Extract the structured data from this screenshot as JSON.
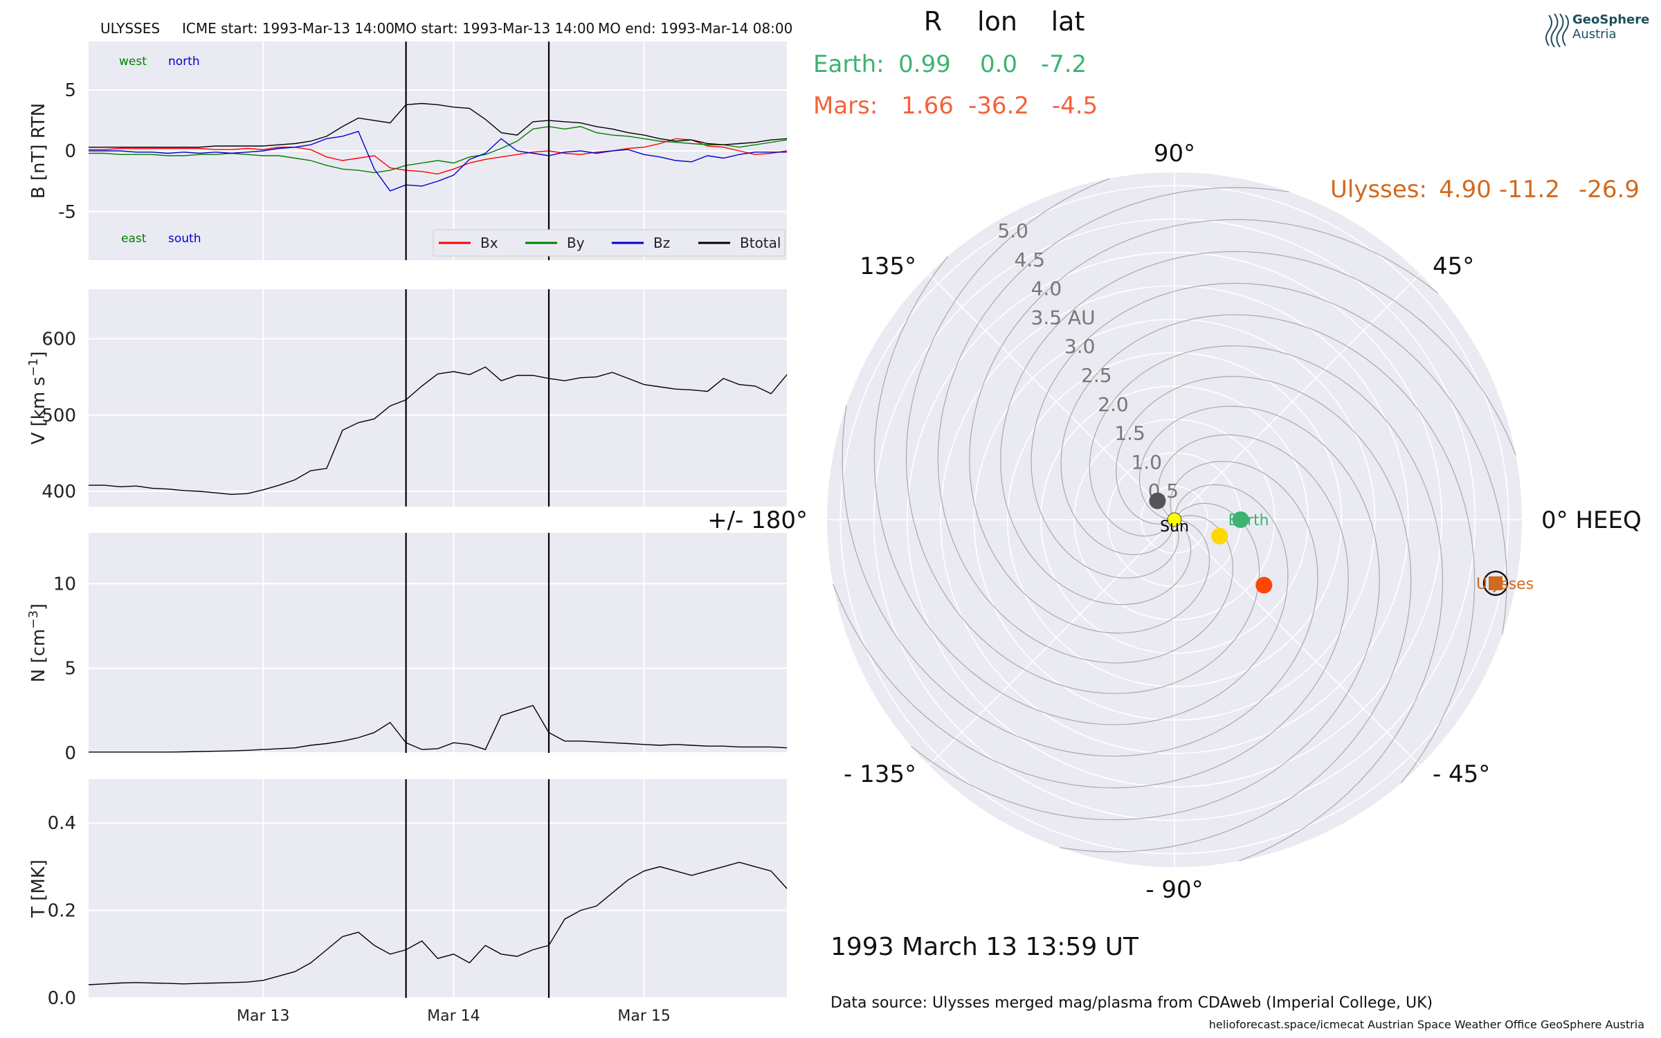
{
  "header": {
    "mission": "ULYSSES",
    "icme_start": "ICME start: 1993-Mar-13 14:00",
    "mo_start": "MO start: 1993-Mar-13 14:00",
    "mo_end": "MO end: 1993-Mar-14 08:00"
  },
  "logo": {
    "line1": "GeoSphere",
    "line2": "Austria"
  },
  "positions": {
    "headers": [
      "R",
      "lon",
      "lat"
    ],
    "bodies": [
      {
        "name": "Earth:",
        "R": "0.99",
        "lon": "0.0",
        "lat": "-7.2",
        "color": "#3cb371"
      },
      {
        "name": "Mars:",
        "R": "1.66",
        "lon": "-36.2",
        "lat": "-4.5",
        "color": "#f4623a"
      }
    ],
    "ulysses": {
      "name": "Ulysses:",
      "R": "4.90",
      "lon": "-11.2",
      "lat": "-26.9",
      "color": "#d2691e"
    }
  },
  "timestamp": "1993 March 13  13:59 UT",
  "data_source": "Data source: Ulysses merged mag/plasma from CDAweb (Imperial College, UK)",
  "credits": "helioforecast.space/icmecat   Austrian Space Weather Office   GeoSphere Austria",
  "chart_data": [
    {
      "type": "line",
      "panel": "B",
      "ylabel": "B [nT] RTN",
      "ylim": [
        -9,
        9
      ],
      "yticks": [
        -5,
        0,
        5
      ],
      "grid": true,
      "direction_labels": {
        "top": [
          "west",
          "north"
        ],
        "bottom": [
          "east",
          "south"
        ]
      },
      "legend_position": "lower-right",
      "x": [
        0,
        2,
        4,
        6,
        8,
        10,
        12,
        14,
        16,
        18,
        20,
        22,
        24,
        26,
        28,
        30,
        32,
        34,
        36,
        38,
        40,
        42,
        44,
        46,
        48,
        50,
        52,
        54,
        56,
        58,
        60,
        62,
        64,
        66,
        68,
        70,
        72,
        74,
        76,
        78,
        80,
        82,
        84,
        86,
        88
      ],
      "series": [
        {
          "name": "Bx",
          "color": "#ff0000",
          "values": [
            0.1,
            0.1,
            0.2,
            0.2,
            0.2,
            0.2,
            0.2,
            0.2,
            0.1,
            0.1,
            0.2,
            0.1,
            0.3,
            0.3,
            0.1,
            -0.5,
            -0.8,
            -0.6,
            -0.4,
            -1.4,
            -1.6,
            -1.7,
            -1.9,
            -1.5,
            -1.0,
            -0.7,
            -0.5,
            -0.3,
            -0.1,
            0.0,
            -0.2,
            -0.3,
            -0.1,
            0.0,
            0.2,
            0.3,
            0.6,
            1.0,
            0.9,
            0.4,
            0.3,
            0.0,
            -0.3,
            -0.2,
            0.0
          ]
        },
        {
          "name": "By",
          "color": "#008000",
          "values": [
            -0.2,
            -0.2,
            -0.3,
            -0.3,
            -0.3,
            -0.4,
            -0.4,
            -0.3,
            -0.3,
            -0.2,
            -0.3,
            -0.4,
            -0.4,
            -0.6,
            -0.8,
            -1.2,
            -1.5,
            -1.6,
            -1.8,
            -1.6,
            -1.2,
            -1.0,
            -0.8,
            -1.0,
            -0.5,
            -0.3,
            0.2,
            0.8,
            1.8,
            2.0,
            1.8,
            2.0,
            1.5,
            1.3,
            1.2,
            1.0,
            0.8,
            0.7,
            0.6,
            0.5,
            0.5,
            0.3,
            0.5,
            0.7,
            0.9
          ]
        },
        {
          "name": "Bz",
          "color": "#0000cd",
          "values": [
            0.0,
            0.0,
            0.0,
            -0.1,
            -0.1,
            -0.2,
            -0.1,
            -0.2,
            -0.1,
            -0.2,
            -0.1,
            0.0,
            0.2,
            0.3,
            0.5,
            1.0,
            1.2,
            1.6,
            -1.5,
            -3.3,
            -2.8,
            -2.9,
            -2.5,
            -2.0,
            -0.7,
            -0.2,
            1.0,
            0.0,
            -0.2,
            -0.4,
            -0.1,
            0.0,
            -0.2,
            0.0,
            0.1,
            -0.3,
            -0.5,
            -0.8,
            -0.9,
            -0.4,
            -0.6,
            -0.3,
            -0.1,
            -0.1,
            -0.1
          ]
        },
        {
          "name": "Btotal",
          "color": "#000000",
          "values": [
            0.3,
            0.3,
            0.3,
            0.3,
            0.3,
            0.3,
            0.3,
            0.3,
            0.4,
            0.4,
            0.4,
            0.4,
            0.5,
            0.6,
            0.8,
            1.2,
            2.0,
            2.7,
            2.5,
            2.3,
            3.8,
            3.9,
            3.8,
            3.6,
            3.5,
            2.6,
            1.5,
            1.3,
            2.4,
            2.5,
            2.4,
            2.3,
            2.0,
            1.8,
            1.5,
            1.3,
            1.0,
            0.8,
            0.9,
            0.6,
            0.5,
            0.6,
            0.7,
            0.9,
            1.0
          ]
        }
      ]
    },
    {
      "type": "line",
      "panel": "V",
      "ylabel": "V [km s",
      "ylabel_exp": "−1",
      "ylabel_end": "]",
      "ylim": [
        380,
        665
      ],
      "yticks": [
        400,
        500,
        600
      ],
      "grid": true,
      "x": [
        0,
        2,
        4,
        6,
        8,
        10,
        12,
        14,
        16,
        18,
        20,
        22,
        24,
        26,
        28,
        30,
        32,
        34,
        36,
        38,
        40,
        42,
        44,
        46,
        48,
        50,
        52,
        54,
        56,
        58,
        60,
        62,
        64,
        66,
        68,
        70,
        72,
        74,
        76,
        78,
        80,
        82,
        84,
        86,
        88
      ],
      "series": [
        {
          "name": "V",
          "color": "#000000",
          "values": [
            408,
            408,
            406,
            407,
            404,
            403,
            401,
            400,
            398,
            396,
            397,
            402,
            408,
            415,
            427,
            430,
            480,
            490,
            495,
            512,
            520,
            538,
            554,
            557,
            553,
            563,
            545,
            552,
            552,
            548,
            545,
            549,
            550,
            556,
            548,
            540,
            537,
            534,
            533,
            531,
            548,
            540,
            538,
            528,
            553
          ]
        }
      ]
    },
    {
      "type": "line",
      "panel": "N",
      "ylabel": "N [cm",
      "ylabel_exp": "−3",
      "ylabel_end": "]",
      "ylim": [
        0,
        13
      ],
      "yticks": [
        0,
        5,
        10
      ],
      "grid": true,
      "x": [
        0,
        2,
        4,
        6,
        8,
        10,
        12,
        14,
        16,
        18,
        20,
        22,
        24,
        26,
        28,
        30,
        32,
        34,
        36,
        38,
        40,
        42,
        44,
        46,
        48,
        50,
        52,
        54,
        56,
        58,
        60,
        62,
        64,
        66,
        68,
        70,
        72,
        74,
        76,
        78,
        80,
        82,
        84,
        86,
        88
      ],
      "series": [
        {
          "name": "N",
          "color": "#000000",
          "values": [
            0.05,
            0.05,
            0.05,
            0.05,
            0.05,
            0.05,
            0.06,
            0.08,
            0.1,
            0.12,
            0.15,
            0.2,
            0.25,
            0.3,
            0.45,
            0.55,
            0.7,
            0.9,
            1.2,
            1.8,
            0.6,
            0.2,
            0.25,
            0.6,
            0.5,
            0.2,
            2.2,
            2.5,
            2.8,
            1.2,
            0.7,
            0.7,
            0.65,
            0.6,
            0.55,
            0.5,
            0.45,
            0.5,
            0.45,
            0.4,
            0.4,
            0.35,
            0.35,
            0.35,
            0.3
          ]
        }
      ]
    },
    {
      "type": "line",
      "panel": "T",
      "ylabel": "T [MK]",
      "ylim": [
        0,
        0.5
      ],
      "yticks": [
        0.0,
        0.2,
        0.4
      ],
      "grid": true,
      "xtick_labels": [
        {
          "label": "Mar 13",
          "x": 22
        },
        {
          "label": "Mar 14",
          "x": 46
        },
        {
          "label": "Mar 15",
          "x": 70
        }
      ],
      "x": [
        0,
        2,
        4,
        6,
        8,
        10,
        12,
        14,
        16,
        18,
        20,
        22,
        24,
        26,
        28,
        30,
        32,
        34,
        36,
        38,
        40,
        42,
        44,
        46,
        48,
        50,
        52,
        54,
        56,
        58,
        60,
        62,
        64,
        66,
        68,
        70,
        72,
        74,
        76,
        78,
        80,
        82,
        84,
        86,
        88
      ],
      "series": [
        {
          "name": "T",
          "color": "#000000",
          "values": [
            0.03,
            0.032,
            0.034,
            0.035,
            0.034,
            0.033,
            0.032,
            0.033,
            0.034,
            0.035,
            0.036,
            0.04,
            0.05,
            0.06,
            0.08,
            0.11,
            0.14,
            0.15,
            0.12,
            0.1,
            0.11,
            0.13,
            0.09,
            0.1,
            0.08,
            0.12,
            0.1,
            0.095,
            0.11,
            0.12,
            0.18,
            0.2,
            0.21,
            0.24,
            0.27,
            0.29,
            0.3,
            0.29,
            0.28,
            0.29,
            0.3,
            0.31,
            0.3,
            0.29,
            0.25
          ]
        }
      ]
    },
    {
      "type": "scatter",
      "panel": "polar",
      "projection": "polar",
      "radial_unit": "AU",
      "radial_tick_labels": [
        "0.5",
        "1.0",
        "1.5",
        "2.0",
        "2.5",
        "3.0",
        "3.5 AU",
        "4.0",
        "4.5",
        "5.0"
      ],
      "angle_labels": [
        "0° HEEQ",
        "45°",
        "90°",
        "135°",
        "+/- 180°",
        "- 135°",
        "- 90°",
        "- 45°"
      ],
      "rlim": [
        0,
        5.2
      ],
      "grid": true,
      "points": [
        {
          "name": "Sun",
          "r": 0.0,
          "lon": 0,
          "color": "#ffff00",
          "label": "Sun"
        },
        {
          "name": "Mercury",
          "r": 0.38,
          "lon": 132,
          "color": "#555555",
          "label": ""
        },
        {
          "name": "Venus",
          "r": 0.72,
          "lon": -20,
          "color": "#ffd700",
          "label": ""
        },
        {
          "name": "Earth",
          "r": 0.99,
          "lon": 0.0,
          "color": "#3cb371",
          "label": "Earth"
        },
        {
          "name": "Mars",
          "r": 1.66,
          "lon": -36.2,
          "color": "#ff4500",
          "label": ""
        },
        {
          "name": "Ulysses",
          "r": 4.9,
          "lon": -11.2,
          "color": "#d2691e",
          "label": "Ulysses"
        }
      ]
    }
  ]
}
